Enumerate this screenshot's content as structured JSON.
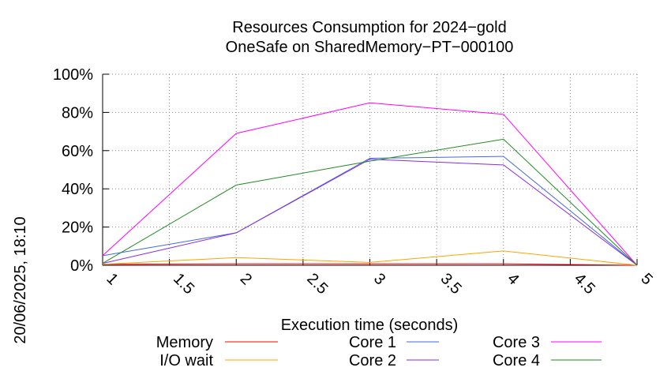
{
  "chart_data": {
    "type": "line",
    "title": "Resources Consumption for 2024−gold",
    "subtitle": "OneSafe on SharedMemory−PT−000100",
    "xlabel": "Execution time (seconds)",
    "ylabel": "",
    "side_label": "20/06/2025, 18:10",
    "xlim": [
      1,
      5
    ],
    "ylim": [
      0,
      100
    ],
    "x_ticks": [
      1,
      1.5,
      2,
      2.5,
      3,
      3.5,
      4,
      4.5,
      5
    ],
    "y_ticks": [
      0,
      20,
      40,
      60,
      80,
      100
    ],
    "y_tick_suffix": "%",
    "grid": true,
    "legend_position": "bottom",
    "x": [
      1,
      2,
      3,
      4,
      5
    ],
    "series": [
      {
        "name": "Memory",
        "color": "#ff0000",
        "values": [
          0.5,
          0.8,
          0.8,
          0.8,
          0
        ]
      },
      {
        "name": "I/O wait",
        "color": "#ffa500",
        "values": [
          0.5,
          4,
          1.5,
          7.5,
          0
        ]
      },
      {
        "name": "Core 1",
        "color": "#4169e1",
        "values": [
          5,
          17,
          56,
          57,
          0
        ]
      },
      {
        "name": "Core 2",
        "color": "#8a2be2",
        "values": [
          1,
          17,
          55.5,
          52.5,
          0
        ]
      },
      {
        "name": "Core 3",
        "color": "#ff00ff",
        "values": [
          5,
          69,
          85,
          79,
          0
        ]
      },
      {
        "name": "Core 4",
        "color": "#228b22",
        "values": [
          1,
          42,
          54.5,
          66,
          0
        ]
      }
    ]
  }
}
